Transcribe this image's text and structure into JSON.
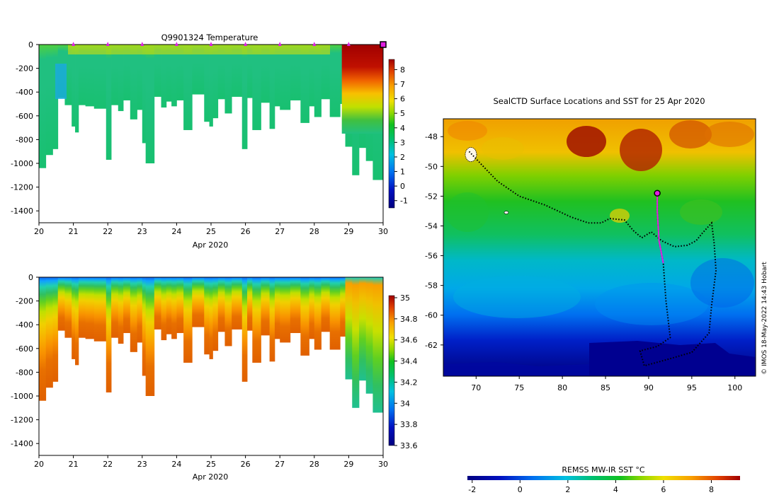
{
  "chart_data": [
    {
      "type": "heatmap",
      "title": "Q9901324  Temperature",
      "xlabel": "Apr 2020",
      "ylabel": "",
      "x_ticks": [
        "20",
        "21",
        "22",
        "23",
        "24",
        "25",
        "26",
        "27",
        "28",
        "29",
        "30"
      ],
      "xlim": [
        20,
        30
      ],
      "y_ticks": [
        "0",
        "-200",
        "-400",
        "-600",
        "-800",
        "-1000",
        "-1200",
        "-1400"
      ],
      "ylim": [
        -1500,
        0
      ],
      "profile_markers_day": [
        21,
        22,
        23,
        24,
        25,
        26,
        27,
        28,
        29
      ],
      "current_marker_day": 30,
      "colorbar": {
        "ticks": [
          "8",
          "7",
          "6",
          "5",
          "4",
          "3",
          "2",
          "1",
          "0",
          "-1"
        ],
        "range": [
          -1.5,
          8.7
        ]
      },
      "profiles": {
        "columns": [
          {
            "start": 20.0,
            "end": 20.2,
            "depth": 1040
          },
          {
            "start": 20.2,
            "end": 20.4,
            "depth": 930
          },
          {
            "start": 20.4,
            "end": 20.55,
            "depth": 880
          },
          {
            "start": 20.55,
            "end": 20.75,
            "depth": 450
          },
          {
            "start": 20.75,
            "end": 20.95,
            "depth": 510
          },
          {
            "start": 20.95,
            "end": 21.05,
            "depth": 690
          },
          {
            "start": 21.05,
            "end": 21.15,
            "depth": 740
          },
          {
            "start": 21.15,
            "end": 21.35,
            "depth": 510
          },
          {
            "start": 21.35,
            "end": 21.6,
            "depth": 520
          },
          {
            "start": 21.6,
            "end": 21.95,
            "depth": 540
          },
          {
            "start": 21.95,
            "end": 22.1,
            "depth": 970
          },
          {
            "start": 22.1,
            "end": 22.3,
            "depth": 510
          },
          {
            "start": 22.3,
            "end": 22.45,
            "depth": 560
          },
          {
            "start": 22.45,
            "end": 22.65,
            "depth": 470
          },
          {
            "start": 22.65,
            "end": 22.85,
            "depth": 630
          },
          {
            "start": 22.85,
            "end": 23.0,
            "depth": 550
          },
          {
            "start": 23.0,
            "end": 23.1,
            "depth": 830
          },
          {
            "start": 23.1,
            "end": 23.35,
            "depth": 1000
          },
          {
            "start": 23.35,
            "end": 23.55,
            "depth": 440
          },
          {
            "start": 23.55,
            "end": 23.7,
            "depth": 530
          },
          {
            "start": 23.7,
            "end": 23.85,
            "depth": 480
          },
          {
            "start": 23.85,
            "end": 24.0,
            "depth": 520
          },
          {
            "start": 24.0,
            "end": 24.2,
            "depth": 470
          },
          {
            "start": 24.2,
            "end": 24.45,
            "depth": 720
          },
          {
            "start": 24.45,
            "end": 24.8,
            "depth": 420
          },
          {
            "start": 24.8,
            "end": 24.95,
            "depth": 650
          },
          {
            "start": 24.95,
            "end": 25.05,
            "depth": 690
          },
          {
            "start": 25.05,
            "end": 25.2,
            "depth": 620
          },
          {
            "start": 25.2,
            "end": 25.4,
            "depth": 460
          },
          {
            "start": 25.4,
            "end": 25.6,
            "depth": 580
          },
          {
            "start": 25.6,
            "end": 25.9,
            "depth": 440
          },
          {
            "start": 25.9,
            "end": 26.05,
            "depth": 880
          },
          {
            "start": 26.05,
            "end": 26.2,
            "depth": 450
          },
          {
            "start": 26.2,
            "end": 26.45,
            "depth": 720
          },
          {
            "start": 26.45,
            "end": 26.7,
            "depth": 490
          },
          {
            "start": 26.7,
            "end": 26.85,
            "depth": 710
          },
          {
            "start": 26.85,
            "end": 27.0,
            "depth": 520
          },
          {
            "start": 27.0,
            "end": 27.3,
            "depth": 550
          },
          {
            "start": 27.3,
            "end": 27.6,
            "depth": 470
          },
          {
            "start": 27.6,
            "end": 27.85,
            "depth": 660
          },
          {
            "start": 27.85,
            "end": 28.0,
            "depth": 520
          },
          {
            "start": 28.0,
            "end": 28.2,
            "depth": 610
          },
          {
            "start": 28.2,
            "end": 28.45,
            "depth": 460
          },
          {
            "start": 28.45,
            "end": 28.75,
            "depth": 610
          },
          {
            "start": 28.75,
            "end": 28.9,
            "depth": 500
          },
          {
            "start": 28.9,
            "end": 29.1,
            "depth": 860
          },
          {
            "start": 29.1,
            "end": 29.3,
            "depth": 1100
          },
          {
            "start": 29.3,
            "end": 29.5,
            "depth": 870
          },
          {
            "start": 29.5,
            "end": 29.7,
            "depth": 980
          },
          {
            "start": 29.7,
            "end": 30.0,
            "depth": 1140
          }
        ]
      }
    },
    {
      "type": "heatmap",
      "title": "",
      "xlabel": "Apr 2020",
      "ylabel": "",
      "x_ticks": [
        "20",
        "21",
        "22",
        "23",
        "24",
        "25",
        "26",
        "27",
        "28",
        "29",
        "30"
      ],
      "xlim": [
        20,
        30
      ],
      "y_ticks": [
        "0",
        "-200",
        "-400",
        "-600",
        "-800",
        "-1000",
        "-1200",
        "-1400"
      ],
      "ylim": [
        -1500,
        0
      ],
      "colorbar": {
        "ticks": [
          "35",
          "34.8",
          "34.6",
          "34.4",
          "34.2",
          "34",
          "33.8",
          "33.6"
        ],
        "range": [
          33.6,
          35.02
        ]
      }
    },
    {
      "type": "heatmap",
      "title": "SealCTD Surface Locations and SST for 25 Apr 2020",
      "xlabel": "",
      "ylabel": "",
      "x_ticks": [
        "70",
        "75",
        "80",
        "85",
        "90",
        "95",
        "100"
      ],
      "xlim": [
        66.2,
        102.4
      ],
      "y_ticks": [
        "-48",
        "-50",
        "-52",
        "-54",
        "-56",
        "-58",
        "-60",
        "-62"
      ],
      "ylim": [
        -64.1,
        -46.8
      ],
      "colorbar": {
        "label": "REMSS MW-IR SST °C",
        "ticks": [
          "-2",
          "0",
          "2",
          "4",
          "6",
          "8"
        ],
        "range": [
          -2.2,
          9.2
        ]
      },
      "seal_track": [
        [
          69.2,
          -49.0
        ],
        [
          70.5,
          -49.8
        ],
        [
          72.5,
          -51.0
        ],
        [
          75,
          -52.0
        ],
        [
          78,
          -52.6
        ],
        [
          81,
          -53.4
        ],
        [
          83,
          -53.8
        ],
        [
          84.5,
          -53.8
        ],
        [
          85.5,
          -53.5
        ],
        [
          87.2,
          -53.6
        ],
        [
          88.2,
          -54.3
        ],
        [
          89.2,
          -54.8
        ],
        [
          90.3,
          -54.4
        ],
        [
          91.5,
          -55.0
        ],
        [
          93,
          -55.4
        ],
        [
          94.5,
          -55.3
        ],
        [
          95.5,
          -55.0
        ],
        [
          96.2,
          -54.5
        ],
        [
          97.3,
          -53.8
        ],
        [
          97.6,
          -55.2
        ],
        [
          97.8,
          -57.0
        ],
        [
          97.3,
          -59.3
        ],
        [
          97.0,
          -61.2
        ],
        [
          95,
          -62.5
        ],
        [
          92,
          -63.0
        ],
        [
          89.5,
          -63.4
        ],
        [
          89,
          -62.4
        ],
        [
          91,
          -62.1
        ],
        [
          92.5,
          -61.5
        ],
        [
          92.0,
          -59.0
        ],
        [
          91.7,
          -56.5
        ],
        [
          91.2,
          -55.0
        ],
        [
          91.0,
          -53.0
        ],
        [
          91.0,
          -51.8
        ]
      ],
      "latest_position": {
        "lon": 91.0,
        "lat": -51.8
      }
    }
  ],
  "credit": "© IMOS 18-May-2022 14:43 Hobart"
}
